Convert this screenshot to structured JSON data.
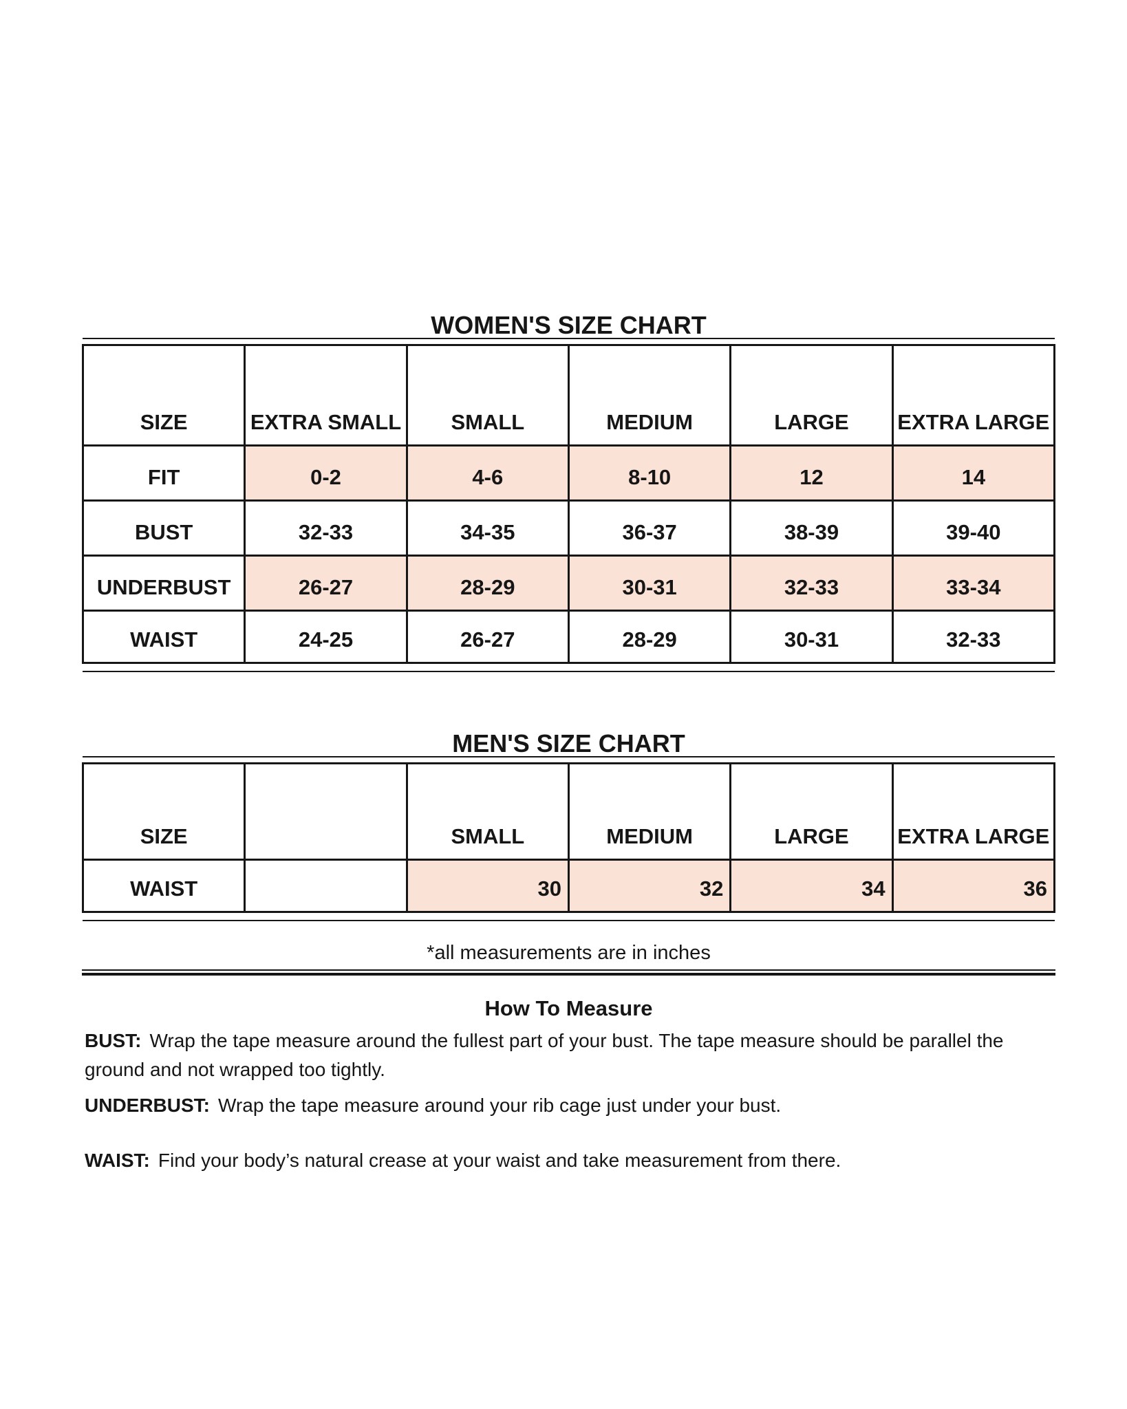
{
  "women_chart": {
    "title": "WOMEN'S SIZE CHART",
    "header": [
      "SIZE",
      "EXTRA SMALL",
      "SMALL",
      "MEDIUM",
      "LARGE",
      "EXTRA LARGE"
    ],
    "rows": [
      {
        "label": "FIT",
        "values": [
          "0-2",
          "4-6",
          "8-10",
          "12",
          "14"
        ],
        "shaded": true
      },
      {
        "label": "BUST",
        "values": [
          "32-33",
          "34-35",
          "36-37",
          "38-39",
          "39-40"
        ],
        "shaded": false
      },
      {
        "label": "UNDERBUST",
        "values": [
          "26-27",
          "28-29",
          "30-31",
          "32-33",
          "33-34"
        ],
        "shaded": true
      },
      {
        "label": "WAIST",
        "values": [
          "24-25",
          "26-27",
          "28-29",
          "30-31",
          "32-33"
        ],
        "shaded": false
      }
    ]
  },
  "men_chart": {
    "title": "MEN'S SIZE CHART",
    "header": [
      "SIZE",
      "",
      "SMALL",
      "MEDIUM",
      "LARGE",
      "EXTRA LARGE"
    ],
    "rows": [
      {
        "label": "WAIST",
        "values": [
          "",
          "30",
          "32",
          "34",
          "36"
        ],
        "shaded": true
      }
    ]
  },
  "footnote": "*all measurements are in inches",
  "how_to_measure": {
    "title": "How To Measure",
    "items": [
      {
        "label": "BUST:",
        "text": "Wrap the tape measure around the fullest part of your bust. The tape measure should be parallel the ground and not wrapped too tightly."
      },
      {
        "label": "UNDERBUST:",
        "text": "Wrap the tape measure around your rib cage just under your bust."
      },
      {
        "label": "WAIST:",
        "text": "Find your body’s natural crease at your waist and take measurement from there."
      }
    ]
  },
  "colors": {
    "shaded_cell": "#fbe2d6",
    "border": "#161616",
    "background": "#ffffff",
    "text": "#161616"
  },
  "units_note": "inches"
}
